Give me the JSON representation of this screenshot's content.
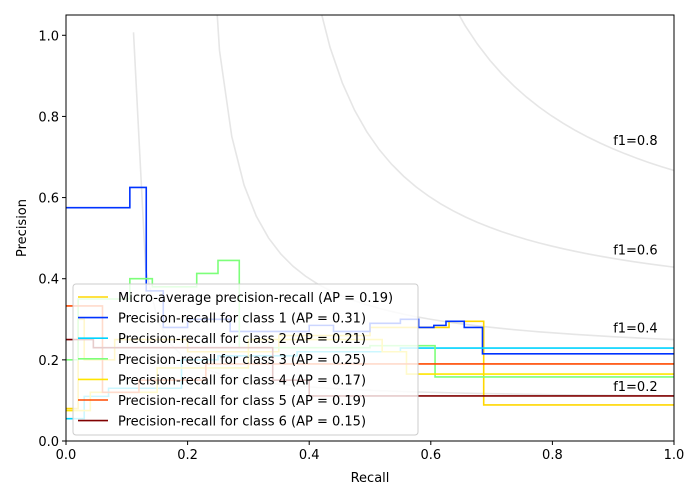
{
  "chart_data": {
    "type": "line",
    "title": "",
    "xlabel": "Recall",
    "ylabel": "Precision",
    "xlim": [
      0,
      1
    ],
    "ylim": [
      0,
      1.05
    ],
    "xticks": [
      "0.0",
      "0.2",
      "0.4",
      "0.6",
      "0.8",
      "1.0"
    ],
    "yticks": [
      "0.0",
      "0.2",
      "0.4",
      "0.6",
      "0.8",
      "1.0"
    ],
    "legend_placement": "lower-left",
    "iso_f1": [
      {
        "f": 0.2,
        "label": "f1=0.2"
      },
      {
        "f": 0.4,
        "label": "f1=0.4"
      },
      {
        "f": 0.6,
        "label": "f1=0.6"
      },
      {
        "f": 0.8,
        "label": "f1=0.8"
      }
    ],
    "series": [
      {
        "name": "Micro-average precision-recall (AP = 0.19)",
        "color": "#ffd700",
        "points": [
          [
            0,
            0.08
          ],
          [
            0.02,
            0.08
          ],
          [
            0.02,
            0.3
          ],
          [
            0.03,
            0.3
          ],
          [
            0.03,
            0.2
          ],
          [
            0.08,
            0.2
          ],
          [
            0.08,
            0.25
          ],
          [
            0.2,
            0.25
          ],
          [
            0.2,
            0.22
          ],
          [
            0.35,
            0.22
          ],
          [
            0.35,
            0.26
          ],
          [
            0.5,
            0.26
          ],
          [
            0.5,
            0.28
          ],
          [
            0.63,
            0.28
          ],
          [
            0.63,
            0.295
          ],
          [
            0.687,
            0.295
          ],
          [
            0.687,
            0.089
          ],
          [
            1,
            0.089
          ]
        ]
      },
      {
        "name": "Precision-recall for class 1 (AP = 0.31)",
        "color": "#0033ff",
        "points": [
          [
            0,
            0.575
          ],
          [
            0.105,
            0.575
          ],
          [
            0.105,
            0.625
          ],
          [
            0.132,
            0.625
          ],
          [
            0.132,
            0.37
          ],
          [
            0.16,
            0.37
          ],
          [
            0.16,
            0.28
          ],
          [
            0.2,
            0.28
          ],
          [
            0.2,
            0.3
          ],
          [
            0.27,
            0.3
          ],
          [
            0.27,
            0.27
          ],
          [
            0.4,
            0.27
          ],
          [
            0.4,
            0.285
          ],
          [
            0.44,
            0.285
          ],
          [
            0.44,
            0.27
          ],
          [
            0.5,
            0.27
          ],
          [
            0.5,
            0.29
          ],
          [
            0.55,
            0.29
          ],
          [
            0.55,
            0.3
          ],
          [
            0.58,
            0.3
          ],
          [
            0.58,
            0.28
          ],
          [
            0.605,
            0.28
          ],
          [
            0.605,
            0.285
          ],
          [
            0.625,
            0.285
          ],
          [
            0.625,
            0.295
          ],
          [
            0.655,
            0.295
          ],
          [
            0.655,
            0.28
          ],
          [
            0.685,
            0.28
          ],
          [
            0.685,
            0.215
          ],
          [
            1,
            0.215
          ]
        ]
      },
      {
        "name": "Precision-recall for class 2 (AP = 0.21)",
        "color": "#00d4ff",
        "points": [
          [
            0,
            0.055
          ],
          [
            0.03,
            0.055
          ],
          [
            0.03,
            0.11
          ],
          [
            0.07,
            0.11
          ],
          [
            0.07,
            0.13
          ],
          [
            0.19,
            0.13
          ],
          [
            0.19,
            0.2
          ],
          [
            0.25,
            0.2
          ],
          [
            0.25,
            0.21
          ],
          [
            0.38,
            0.21
          ],
          [
            0.38,
            0.22
          ],
          [
            0.55,
            0.22
          ],
          [
            0.55,
            0.229
          ],
          [
            1,
            0.229
          ]
        ]
      },
      {
        "name": "Precision-recall for class 3 (AP = 0.25)",
        "color": "#7dff7a",
        "points": [
          [
            0,
            0.2
          ],
          [
            0.02,
            0.2
          ],
          [
            0.02,
            0.35
          ],
          [
            0.105,
            0.35
          ],
          [
            0.105,
            0.4
          ],
          [
            0.142,
            0.4
          ],
          [
            0.142,
            0.38
          ],
          [
            0.215,
            0.38
          ],
          [
            0.215,
            0.413
          ],
          [
            0.25,
            0.413
          ],
          [
            0.25,
            0.445
          ],
          [
            0.285,
            0.445
          ],
          [
            0.285,
            0.23
          ],
          [
            0.5,
            0.23
          ],
          [
            0.5,
            0.235
          ],
          [
            0.607,
            0.235
          ],
          [
            0.607,
            0.158
          ],
          [
            1,
            0.158
          ]
        ]
      },
      {
        "name": "Precision-recall for class 4 (AP = 0.17)",
        "color": "#ffe500",
        "points": [
          [
            0,
            0.075
          ],
          [
            0.04,
            0.075
          ],
          [
            0.04,
            0.12
          ],
          [
            0.15,
            0.12
          ],
          [
            0.15,
            0.18
          ],
          [
            0.3,
            0.18
          ],
          [
            0.3,
            0.25
          ],
          [
            0.45,
            0.25
          ],
          [
            0.45,
            0.25
          ],
          [
            0.52,
            0.25
          ],
          [
            0.52,
            0.22
          ],
          [
            0.56,
            0.22
          ],
          [
            0.56,
            0.165
          ],
          [
            1,
            0.165
          ]
        ]
      },
      {
        "name": "Precision-recall for class 5 (AP = 0.19)",
        "color": "#ff4a00",
        "points": [
          [
            0,
            0.333
          ],
          [
            0.06,
            0.333
          ],
          [
            0.06,
            0.12
          ],
          [
            0.12,
            0.12
          ],
          [
            0.12,
            0.15
          ],
          [
            0.23,
            0.15
          ],
          [
            0.23,
            0.19
          ],
          [
            1,
            0.19
          ]
        ]
      },
      {
        "name": "Precision-recall for class 6 (AP = 0.15)",
        "color": "#800000",
        "points": [
          [
            0,
            0.25
          ],
          [
            0.045,
            0.25
          ],
          [
            0.045,
            0.23
          ],
          [
            0.34,
            0.23
          ],
          [
            0.34,
            0.15
          ],
          [
            0.4,
            0.15
          ],
          [
            0.4,
            0.111
          ],
          [
            1,
            0.111
          ]
        ]
      }
    ]
  }
}
